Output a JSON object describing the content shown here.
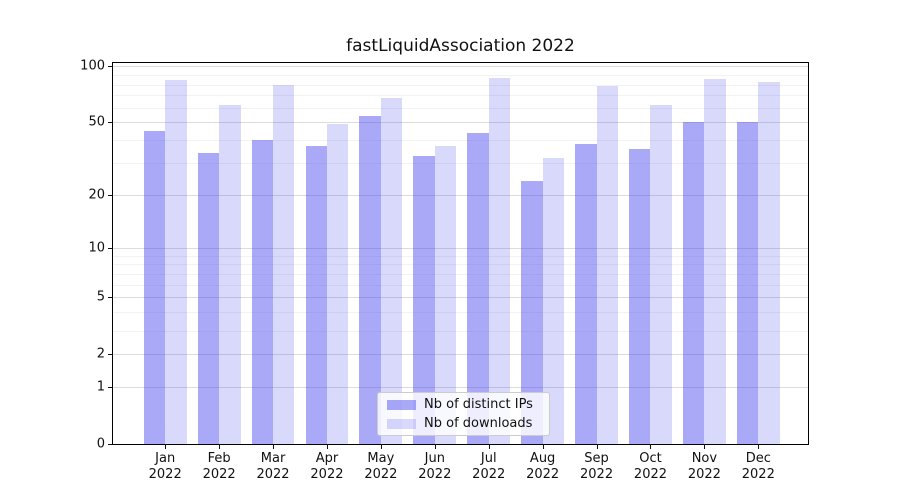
{
  "figure": {
    "background": "#ffffff"
  },
  "chart_data": {
    "type": "bar",
    "title": "fastLiquidAssociation 2022",
    "categories": [
      "Jan",
      "Feb",
      "Mar",
      "Apr",
      "May",
      "Jun",
      "Jul",
      "Aug",
      "Sep",
      "Oct",
      "Nov",
      "Dec"
    ],
    "x_tick_year": "2022",
    "series": [
      {
        "name": "Nb of distinct IPs",
        "color": "rgba(64,64,240,0.45)",
        "values": [
          45,
          34,
          40,
          37,
          54,
          33,
          44,
          24,
          38,
          36,
          50,
          50
        ]
      },
      {
        "name": "Nb of downloads",
        "color": "rgba(64,64,240,0.2)",
        "values": [
          85,
          62,
          80,
          49,
          68,
          37,
          87,
          32,
          79,
          62,
          86,
          83
        ]
      }
    ],
    "xlabel": "",
    "ylabel": "",
    "yscale": "log1p",
    "ylim": [
      0,
      104
    ],
    "yticks": [
      100,
      50,
      20,
      10,
      5,
      2,
      1,
      0
    ],
    "yticks_minor": [
      3,
      4,
      6,
      7,
      8,
      9,
      30,
      40,
      60,
      70,
      80,
      90
    ],
    "grid": true,
    "legend_position": "lower center",
    "bar_alpha_note": "bars are semi-transparent; gridlines visible through them",
    "colors": {
      "grid_major": "#dcdcdc",
      "grid_minor": "#f2f2f2",
      "spine": "#000000",
      "text": "#111111",
      "bar_base": "#4040f0"
    }
  },
  "legend": {
    "items": [
      {
        "label": "Nb of distinct IPs"
      },
      {
        "label": "Nb of downloads"
      }
    ]
  }
}
